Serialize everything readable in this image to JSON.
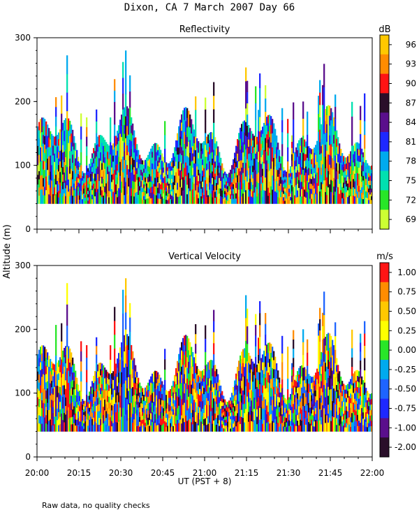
{
  "chart_data": [
    {
      "type": "heatmap",
      "title": "Reflectivity",
      "colorbar_units": "dB",
      "ylim": [
        0,
        300
      ],
      "y_ticks": [
        0,
        100,
        200,
        300
      ],
      "data_altitude_range_m": [
        40,
        280
      ],
      "colorbar_ticks": [
        "96",
        "93",
        "90",
        "87",
        "84",
        "81",
        "78",
        "75",
        "72",
        "69"
      ],
      "colorbar_colors": [
        "#ffc800",
        "#ff8c00",
        "#ff1414",
        "#2a0f2a",
        "#5a0f8c",
        "#1e28ff",
        "#00aaee",
        "#00e0b0",
        "#28e628",
        "#ccff33"
      ]
    },
    {
      "type": "heatmap",
      "title": "Vertical Velocity",
      "colorbar_units": "m/s",
      "ylim": [
        0,
        300
      ],
      "y_ticks": [
        0,
        100,
        200,
        300
      ],
      "data_altitude_range_m": [
        40,
        280
      ],
      "colorbar_ticks": [
        "1.00",
        "0.75",
        "0.50",
        "0.25",
        "0.00",
        "-0.25",
        "-0.50",
        "-0.75",
        "-1.00",
        "-2.00"
      ],
      "colorbar_colors": [
        "#ff1414",
        "#ff8c00",
        "#ffc800",
        "#ffff00",
        "#28e628",
        "#00aaee",
        "#1e64ff",
        "#1e28ff",
        "#5a0f8c",
        "#2a0f2a"
      ]
    }
  ],
  "header": {
    "title": "Dixon, CA  7 March 2007  Day  66"
  },
  "axes": {
    "ylabel": "Altitude (m)",
    "xlabel": "UT  (PST + 8)",
    "x_ticks": [
      "20:00",
      "20:15",
      "20:30",
      "20:45",
      "21:00",
      "21:15",
      "21:30",
      "21:45",
      "22:00"
    ],
    "xlim": [
      "20:00",
      "22:00"
    ]
  },
  "footer": {
    "note": "Raw data, no quality checks"
  }
}
